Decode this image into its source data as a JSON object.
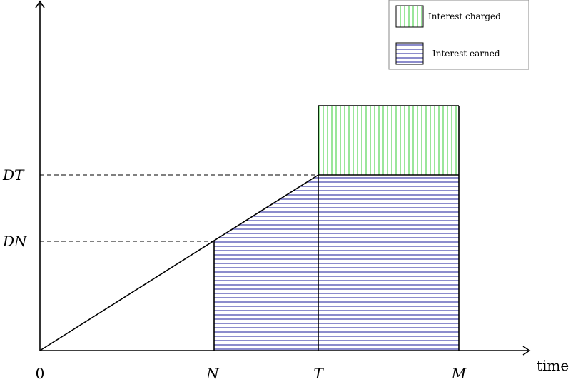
{
  "diagram": {
    "x_label": "time",
    "x_ticks": {
      "zero": "0",
      "n": "N",
      "t": "T",
      "m": "M"
    },
    "y_ticks": {
      "dn": "DN",
      "dt": "DT"
    },
    "legend": {
      "charged_label": "Interest charged",
      "earned_label": "Interest earned"
    },
    "colors": {
      "interest_charged": "#33cc33",
      "interest_earned": "#1a1a99",
      "axis": "#000000"
    }
  }
}
